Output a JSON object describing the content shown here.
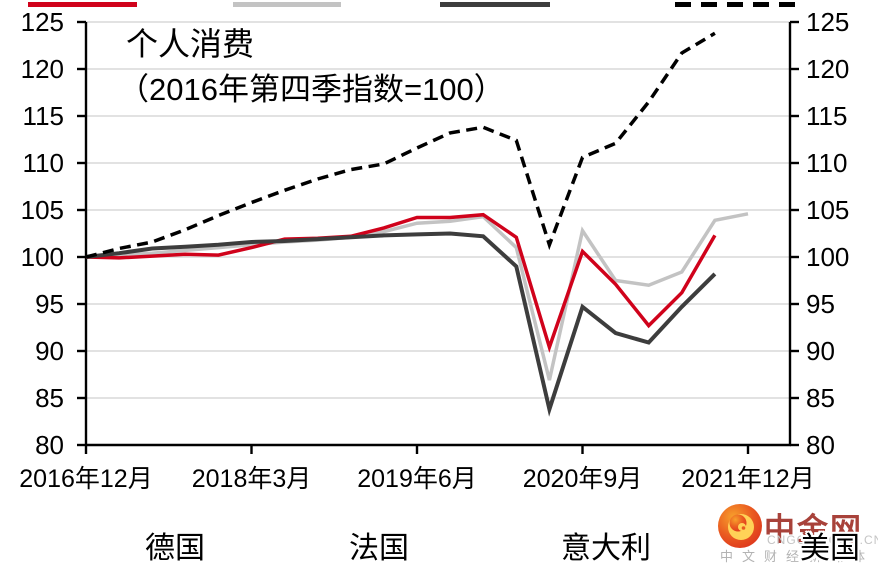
{
  "title": "个人消费",
  "subtitle": "（2016年第四季指数=100）",
  "chart_data": {
    "type": "line",
    "x_unit": "quarter",
    "x_start_label": "2016年12月",
    "x_tick_labels": [
      "2016年12月",
      "2018年3月",
      "2019年6月",
      "2020年9月",
      "2021年12月"
    ],
    "x_tick_point_index": [
      0,
      5,
      10,
      15,
      20
    ],
    "x_points_total": 21,
    "ylim": [
      80,
      125
    ],
    "y_ticks": [
      125,
      120,
      115,
      110,
      105,
      100,
      95,
      90,
      85,
      80
    ],
    "y_axis_sides": "left-and-right",
    "grid": "horizontal",
    "gridline_color": "#d9d9d9",
    "axis_color": "#000000",
    "legend_position": "bottom",
    "series": [
      {
        "name": "德国",
        "color": "#d0021b",
        "style": "solid",
        "values": [
          100,
          99.9,
          100.1,
          100.3,
          100.2,
          101.0,
          101.9,
          102.0,
          102.2,
          103.1,
          104.2,
          104.2,
          104.5,
          102.1,
          90.4,
          100.6,
          97.1,
          92.7,
          96.2,
          102.3,
          null
        ]
      },
      {
        "name": "法国",
        "color": "#c3c3c3",
        "style": "solid",
        "values": [
          100,
          100.2,
          100.4,
          100.7,
          101.0,
          101.3,
          101.6,
          101.8,
          102.1,
          102.7,
          103.6,
          103.8,
          104.3,
          101.0,
          86.9,
          102.8,
          97.5,
          97.0,
          98.4,
          103.9,
          104.6
        ]
      },
      {
        "name": "意大利",
        "color": "#3d3d3d",
        "style": "solid",
        "values": [
          100,
          100.4,
          100.9,
          101.1,
          101.3,
          101.6,
          101.7,
          101.9,
          102.1,
          102.3,
          102.4,
          102.5,
          102.2,
          99.0,
          83.8,
          94.7,
          91.9,
          90.9,
          94.7,
          98.2,
          null
        ]
      },
      {
        "name": "美国",
        "color": "#000000",
        "style": "dashed",
        "values": [
          100,
          100.9,
          101.6,
          102.9,
          104.4,
          105.8,
          107.1,
          108.3,
          109.3,
          109.9,
          111.6,
          113.2,
          113.8,
          112.4,
          101.3,
          110.6,
          112.1,
          116.5,
          121.7,
          123.8,
          null
        ]
      }
    ]
  },
  "watermark": {
    "brand": "中金网",
    "domain": "CNGOLD.COM.CN",
    "tagline": "中文财经新媒体",
    "logo_outer_color": "#e8491f",
    "logo_swirl_color": "#ffd257",
    "brand_color": "#a8423a"
  }
}
